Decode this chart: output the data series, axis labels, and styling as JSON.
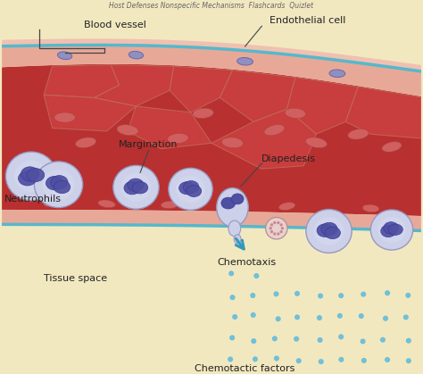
{
  "bg_color": "#f2e8c0",
  "vessel_red_dark": "#b83030",
  "vessel_red_mid": "#cc4040",
  "vessel_wall_pink": "#e8a898",
  "vessel_wall_light": "#f0c0b0",
  "vessel_border_teal": "#55b8cc",
  "endothelial_line": "#c87060",
  "neutrophil_body": "#c8cce8",
  "neutrophil_body2": "#b0b4d8",
  "neutrophil_nucleus_dark": "#5050a0",
  "neutrophil_nucleus_light": "#7878b8",
  "rbc_pink": "#e08888",
  "dot_color": "#70c0d8",
  "arrow_color": "#3399bb",
  "text_color": "#222222",
  "labels": {
    "blood_vessel": "Blood vessel",
    "endothelial_cell": "Endothelial cell",
    "margination": "Margination",
    "diapedesis": "Diapedesis",
    "neutrophils": "Neutrophils",
    "chemotaxis": "Chemotaxis",
    "tissue_space": "Tissue space",
    "chemotactic_factors": "Chemotactic factors"
  },
  "figsize": [
    4.74,
    4.19
  ],
  "dpi": 100
}
